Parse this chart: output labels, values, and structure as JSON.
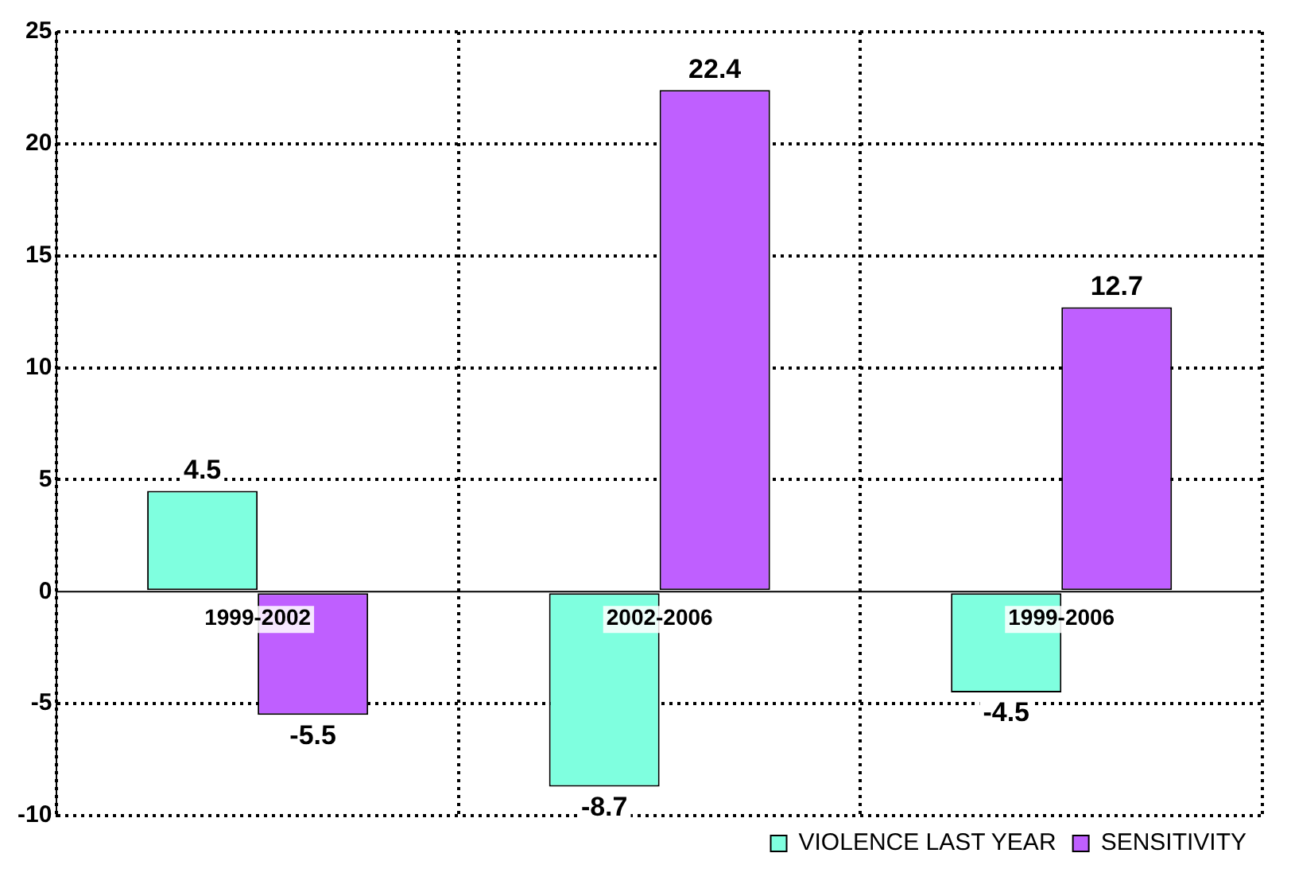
{
  "chart_data": {
    "type": "bar",
    "categories": [
      "1999-2002",
      "2002-2006",
      "1999-2006"
    ],
    "series": [
      {
        "name": "VIOLENCE LAST YEAR",
        "color": "#7fffdf",
        "values": [
          4.5,
          -8.7,
          -4.5
        ]
      },
      {
        "name": "SENSITIVITY",
        "color": "#bf5fff",
        "values": [
          -5.5,
          22.4,
          12.7
        ]
      }
    ],
    "ylim": [
      -10,
      25
    ],
    "yticks": [
      -10,
      -5,
      0,
      5,
      10,
      15,
      20,
      25
    ],
    "grid": true,
    "legend": "bottom right",
    "data_labels": true
  }
}
